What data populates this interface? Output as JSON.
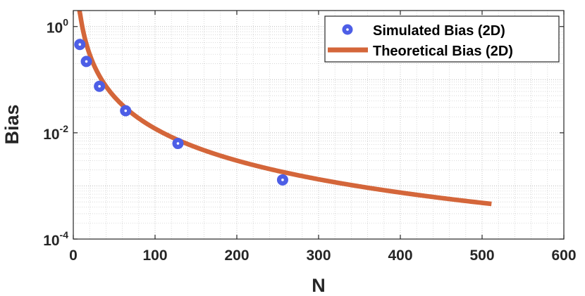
{
  "chart_data": {
    "type": "scatter",
    "xlabel": "N",
    "ylabel": "Bias",
    "xlim": [
      0,
      600
    ],
    "ylim": [
      0.0001,
      2
    ],
    "yscale": "log",
    "grid": true,
    "minor_grid": true,
    "legend_position": "top-right",
    "x_ticks": [
      "0",
      "100",
      "200",
      "300",
      "400",
      "500",
      "600"
    ],
    "y_ticks": [
      {
        "base": "10",
        "exp": "-4",
        "value": 0.0001
      },
      {
        "base": "10",
        "exp": "-2",
        "value": 0.01
      },
      {
        "base": "10",
        "exp": "0",
        "value": 1
      }
    ],
    "series": [
      {
        "name": "Simulated Bias (2D)",
        "kind": "scatter",
        "color": "#4d5ee6",
        "x": [
          8,
          16,
          32,
          64,
          128,
          256
        ],
        "y": [
          0.46,
          0.22,
          0.075,
          0.026,
          0.0063,
          0.0013
        ]
      },
      {
        "name": "Theoretical Bias (2D)",
        "kind": "line",
        "color": "#d4663a",
        "formula_note": "y = 120 / x^2",
        "x_range": [
          7.5,
          512
        ],
        "coefficient": 120
      }
    ]
  }
}
